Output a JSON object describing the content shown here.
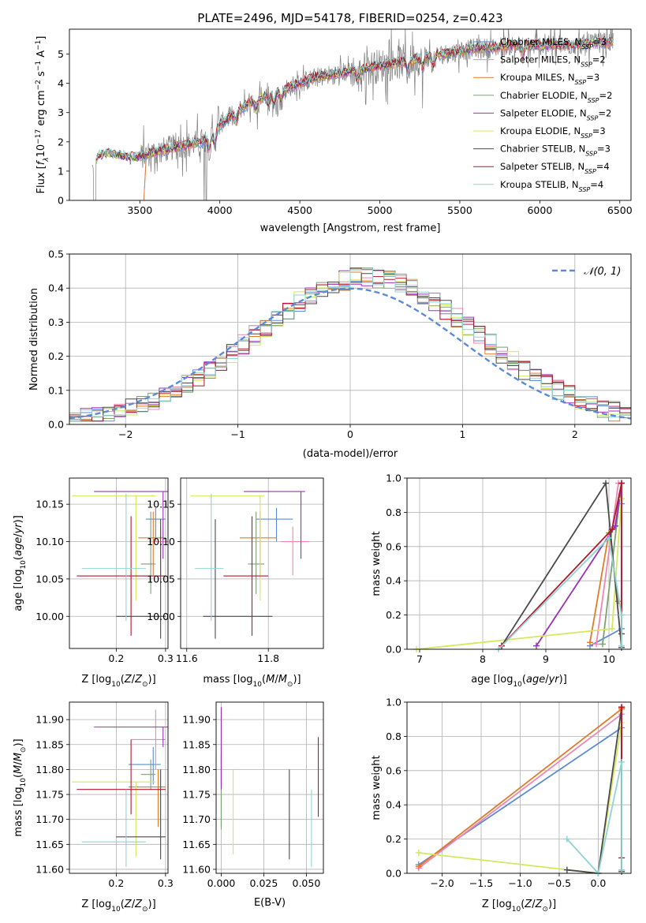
{
  "colors": {
    "chabrier_miles": "#5b8bd6",
    "salpeter_miles": "#ee87b5",
    "kroupa_miles": "#e07b27",
    "chabrier_elodie": "#7aa273",
    "salpeter_elodie": "#9b30b8",
    "kroupa_elodie": "#d3e85e",
    "chabrier_stelib": "#4a4a4a",
    "salpeter_stelib": "#b2182b",
    "kroupa_stelib": "#8fd4d2",
    "data_spectrum": "#808080",
    "normal_curve": "#5b8bd6",
    "grid": "#b0b0b0"
  },
  "chart_data": [
    {
      "id": "spectrum",
      "type": "line",
      "title": "PLATE=2496, MJD=54178, FIBERID=0254, z=0.423",
      "xlabel": "wavelength [Angstrom, rest frame]",
      "ylabel_parts": [
        "Flux [",
        "f",
        "λ",
        "10",
        "−17",
        " erg cm",
        "−2",
        " s",
        "−1",
        " A",
        "−1",
        "]"
      ],
      "xlim": [
        3060,
        6570
      ],
      "ylim": [
        0,
        5.85
      ],
      "xticks": [
        3500,
        4000,
        4500,
        5000,
        5500,
        6000,
        6500
      ],
      "yticks": [
        0,
        1,
        2,
        3,
        4,
        5
      ],
      "grid": false,
      "legend_position": "top-right",
      "legend": [
        {
          "label": "Chabrier MILES, N",
          "sub": "SSP",
          "tail": "=3",
          "color": "#5b8bd6"
        },
        {
          "label": "Salpeter MILES, N",
          "sub": "SSP",
          "tail": "=2",
          "color": "#ee87b5"
        },
        {
          "label": "Kroupa MILES, N",
          "sub": "SSP",
          "tail": "=3",
          "color": "#e07b27"
        },
        {
          "label": "Chabrier ELODIE, N",
          "sub": "SSP",
          "tail": "=2",
          "color": "#7aa273"
        },
        {
          "label": "Salpeter ELODIE, N",
          "sub": "SSP",
          "tail": "=2",
          "color": "#9b30b8"
        },
        {
          "label": "Kroupa ELODIE, N",
          "sub": "SSP",
          "tail": "=3",
          "color": "#d3e85e"
        },
        {
          "label": "Chabrier STELIB, N",
          "sub": "SSP",
          "tail": "=3",
          "color": "#4a4a4a"
        },
        {
          "label": "Salpeter STELIB, N",
          "sub": "SSP",
          "tail": "=4",
          "color": "#b2182b"
        },
        {
          "label": "Kroupa STELIB, N",
          "sub": "SSP",
          "tail": "=4",
          "color": "#8fd4d2"
        }
      ],
      "continuum_wavelength": [
        3210,
        3240,
        3300,
        3400,
        3480,
        3560,
        3700,
        3800,
        3880,
        3950,
        4000,
        4100,
        4200,
        4300,
        4400,
        4500,
        4600,
        4700,
        4800,
        4900,
        5000,
        5100,
        5200,
        5300,
        5400,
        5500,
        5600,
        5700,
        5800,
        5900,
        6000,
        6100,
        6200,
        6300,
        6400,
        6500
      ],
      "continuum_flux": [
        1.15,
        1.5,
        1.6,
        1.5,
        1.45,
        1.6,
        1.8,
        1.9,
        2.0,
        2.2,
        2.6,
        3.0,
        3.4,
        3.6,
        3.8,
        4.0,
        4.2,
        4.3,
        4.4,
        4.5,
        4.6,
        4.7,
        4.8,
        4.9,
        5.0,
        5.1,
        5.2,
        5.2,
        5.3,
        5.3,
        5.3,
        5.3,
        5.3,
        5.35,
        5.4,
        5.4
      ]
    },
    {
      "id": "residuals",
      "type": "histogram",
      "xlabel": "(data-model)/error",
      "ylabel": "Normed distribution",
      "xlim": [
        -2.5,
        2.5
      ],
      "ylim": [
        0,
        0.5
      ],
      "xticks": [
        -2,
        -1,
        0,
        1,
        2
      ],
      "yticks": [
        0.0,
        0.1,
        0.2,
        0.3,
        0.4,
        0.5
      ],
      "grid": true,
      "legend_position": "top-right",
      "legend": [
        {
          "label": "𝒩(0, 1)",
          "color": "#5b8bd6",
          "style": "dashed"
        }
      ],
      "bin_width": 0.1,
      "normal_curve": {
        "mean": 0,
        "sigma": 1
      }
    },
    {
      "id": "age_vs_Z",
      "type": "errorbar",
      "xlabel": "Z [log10(Z/Z⊙)]",
      "ylabel": "age  [log10(age/yr)]",
      "xlim": [
        0.105,
        0.305
      ],
      "ylim": [
        9.957,
        10.185
      ],
      "xticks": [
        0.2,
        0.3
      ],
      "yticks": [
        10.0,
        10.05,
        10.1,
        10.15
      ],
      "grid": true,
      "points": [
        {
          "model": "chabrier_miles",
          "x": 0.28,
          "xerr": [
            0.02,
            0.02
          ],
          "y": 10.13,
          "yerr": [
            0.03,
            0.015
          ]
        },
        {
          "model": "salpeter_miles",
          "x": 0.29,
          "xerr": [
            0.015,
            0.015
          ],
          "y": 10.1,
          "yerr": [
            0.045,
            0.02
          ]
        },
        {
          "model": "kroupa_miles",
          "x": 0.275,
          "xerr": [
            0.03,
            0.025
          ],
          "y": 10.105,
          "yerr": [
            0.05,
            0.035
          ]
        },
        {
          "model": "chabrier_elodie",
          "x": 0.27,
          "xerr": [
            0.02,
            0.01
          ],
          "y": 10.07,
          "yerr": [
            0.04,
            0.07
          ]
        },
        {
          "model": "salpeter_elodie",
          "x": 0.295,
          "xerr": [
            0.14,
            0.01
          ],
          "y": 10.167,
          "yerr": [
            0.09,
            0.0
          ]
        },
        {
          "model": "kroupa_elodie",
          "x": 0.24,
          "xerr": [
            0.13,
            0.04
          ],
          "y": 10.161,
          "yerr": [
            0.14,
            0.0
          ]
        },
        {
          "model": "chabrier_stelib",
          "x": 0.29,
          "xerr": [
            0.09,
            0.01
          ],
          "y": 10.0,
          "yerr": [
            0.03,
            0.13
          ]
        },
        {
          "model": "salpeter_stelib",
          "x": 0.23,
          "xerr": [
            0.11,
            0.07
          ],
          "y": 10.054,
          "yerr": [
            0.08,
            0.08
          ]
        },
        {
          "model": "kroupa_stelib",
          "x": 0.22,
          "xerr": [
            0.09,
            0.04
          ],
          "y": 10.064,
          "yerr": [
            0.07,
            0.1
          ]
        }
      ]
    },
    {
      "id": "age_vs_mass",
      "type": "errorbar",
      "xlabel": "mass [log10(M/M⊙)]",
      "xlim": [
        11.585,
        11.935
      ],
      "ylim": [
        9.957,
        10.185
      ],
      "xticks": [
        11.6,
        11.8
      ],
      "yticks": [
        10.0,
        10.05,
        10.1,
        10.15
      ],
      "grid": true,
      "points": [
        {
          "model": "chabrier_miles",
          "x": 11.82,
          "xerr": [
            0.05,
            0.04
          ],
          "y": 10.13,
          "yerr": [
            0.03,
            0.015
          ]
        },
        {
          "model": "salpeter_miles",
          "x": 11.86,
          "xerr": [
            0.03,
            0.04
          ],
          "y": 10.1,
          "yerr": [
            0.045,
            0.02
          ]
        },
        {
          "model": "kroupa_miles",
          "x": 11.78,
          "xerr": [
            0.05,
            0.04
          ],
          "y": 10.105,
          "yerr": [
            0.05,
            0.035
          ]
        },
        {
          "model": "chabrier_elodie",
          "x": 11.77,
          "xerr": [
            0.02,
            0.02
          ],
          "y": 10.07,
          "yerr": [
            0.04,
            0.07
          ]
        },
        {
          "model": "salpeter_elodie",
          "x": 11.88,
          "xerr": [
            0.14,
            0.01
          ],
          "y": 10.167,
          "yerr": [
            0.09,
            0.0
          ]
        },
        {
          "model": "kroupa_elodie",
          "x": 11.78,
          "xerr": [
            0.17,
            0.01
          ],
          "y": 10.161,
          "yerr": [
            0.14,
            0.0
          ]
        },
        {
          "model": "chabrier_stelib",
          "x": 11.67,
          "xerr": [
            0.03,
            0.14
          ],
          "y": 10.0,
          "yerr": [
            0.03,
            0.13
          ]
        },
        {
          "model": "salpeter_stelib",
          "x": 11.76,
          "xerr": [
            0.07,
            0.04
          ],
          "y": 10.054,
          "yerr": [
            0.08,
            0.08
          ]
        },
        {
          "model": "kroupa_stelib",
          "x": 11.66,
          "xerr": [
            0.04,
            0.03
          ],
          "y": 10.064,
          "yerr": [
            0.07,
            0.1
          ]
        }
      ]
    },
    {
      "id": "mass_weight_vs_age",
      "type": "line",
      "xlabel": "age  [log10(age/yr)]",
      "ylabel": "mass weight",
      "xlim": [
        6.8,
        10.35
      ],
      "ylim": [
        0,
        1
      ],
      "xticks": [
        7,
        8,
        9,
        10
      ],
      "yticks": [
        0.0,
        0.2,
        0.4,
        0.6,
        0.8,
        1.0
      ],
      "grid": true,
      "series": [
        {
          "model": "chabrier_miles",
          "x": [
            9.7,
            10.2,
            10.2
          ],
          "y": [
            0.02,
            0.12,
            0.85
          ]
        },
        {
          "model": "salpeter_miles",
          "x": [
            9.8,
            10.15
          ],
          "y": [
            0.03,
            0.97
          ]
        },
        {
          "model": "kroupa_miles",
          "x": [
            9.7,
            10.0,
            10.15
          ],
          "y": [
            0.04,
            0.68,
            0.28
          ]
        },
        {
          "model": "chabrier_elodie",
          "x": [
            9.9,
            10.2
          ],
          "y": [
            0.03,
            0.97
          ]
        },
        {
          "model": "salpeter_elodie",
          "x": [
            8.85,
            10.1,
            10.2
          ],
          "y": [
            0.02,
            0.72,
            0.97
          ]
        },
        {
          "model": "kroupa_elodie",
          "x": [
            6.95,
            10.05,
            10.2
          ],
          "y": [
            0.0,
            0.12,
            0.88
          ]
        },
        {
          "model": "chabrier_stelib",
          "x": [
            8.3,
            9.95,
            10.2
          ],
          "y": [
            0.02,
            0.97,
            0.01
          ]
        },
        {
          "model": "salpeter_stelib",
          "x": [
            8.3,
            10.05,
            10.2,
            10.2
          ],
          "y": [
            0.02,
            0.7,
            0.97,
            0.09
          ]
        },
        {
          "model": "kroupa_stelib",
          "x": [
            8.25,
            10.0,
            10.2,
            10.2
          ],
          "y": [
            0.0,
            0.65,
            0.2,
            0.02
          ]
        }
      ]
    },
    {
      "id": "mass_vs_Z",
      "type": "errorbar",
      "xlabel": "Z [log10(Z/Z⊙)]",
      "ylabel": "mass [log10(M/M⊙)]",
      "xlim": [
        0.105,
        0.305
      ],
      "ylim": [
        11.592,
        11.935
      ],
      "xticks": [
        0.2,
        0.3
      ],
      "yticks": [
        11.6,
        11.65,
        11.7,
        11.75,
        11.8,
        11.85,
        11.9
      ],
      "grid": true,
      "points": [
        {
          "model": "chabrier_miles",
          "x": 0.275,
          "xerr": [
            0.05,
            0.015
          ],
          "y": 11.81,
          "yerr": [
            0.04,
            0.035
          ]
        },
        {
          "model": "salpeter_miles",
          "x": 0.28,
          "xerr": [
            0.05,
            0.02
          ],
          "y": 11.86,
          "yerr": [
            0.06,
            0.06
          ]
        },
        {
          "model": "kroupa_miles",
          "x": 0.285,
          "xerr": [
            0.06,
            0.015
          ],
          "y": 11.765,
          "yerr": [
            0.08,
            0.035
          ]
        },
        {
          "model": "chabrier_elodie",
          "x": 0.27,
          "xerr": [
            0.02,
            0.01
          ],
          "y": 11.79,
          "yerr": [
            0.03,
            0.03
          ]
        },
        {
          "model": "salpeter_elodie",
          "x": 0.295,
          "xerr": [
            0.14,
            0.01
          ],
          "y": 11.885,
          "yerr": [
            0.04,
            0.0
          ]
        },
        {
          "model": "kroupa_elodie",
          "x": 0.24,
          "xerr": [
            0.13,
            0.04
          ],
          "y": 11.775,
          "yerr": [
            0.15,
            0.0
          ]
        },
        {
          "model": "chabrier_stelib",
          "x": 0.29,
          "xerr": [
            0.09,
            0.01
          ],
          "y": 11.665,
          "yerr": [
            0.045,
            0.135
          ]
        },
        {
          "model": "salpeter_stelib",
          "x": 0.23,
          "xerr": [
            0.11,
            0.07
          ],
          "y": 11.76,
          "yerr": [
            0.05,
            0.1
          ]
        },
        {
          "model": "kroupa_stelib",
          "x": 0.22,
          "xerr": [
            0.09,
            0.04
          ],
          "y": 11.655,
          "yerr": [
            0.05,
            0.105
          ]
        }
      ]
    },
    {
      "id": "mass_vs_ebv",
      "type": "errorbar",
      "xlabel": "E(B-V)",
      "xlim": [
        -0.003,
        0.06
      ],
      "ylim": [
        11.592,
        11.935
      ],
      "xticks": [
        0.0,
        0.025,
        0.05
      ],
      "yticks": [
        11.6,
        11.65,
        11.7,
        11.75,
        11.8,
        11.85,
        11.9
      ],
      "grid": true,
      "points": [
        {
          "model": "chabrier_miles",
          "x": 0.0,
          "y": 11.81,
          "yerr": [
            0.04,
            0.035
          ]
        },
        {
          "model": "salpeter_miles",
          "x": 0.0,
          "y": 11.86,
          "yerr": [
            0.06,
            0.06
          ]
        },
        {
          "model": "kroupa_miles",
          "x": 0.0,
          "y": 11.765,
          "yerr": [
            0.08,
            0.035
          ]
        },
        {
          "model": "chabrier_elodie",
          "x": 0.0,
          "y": 11.75,
          "yerr": [
            0.07,
            0.08
          ]
        },
        {
          "model": "salpeter_elodie",
          "x": 0.0,
          "y": 11.84,
          "yerr": [
            0.08,
            0.085
          ]
        },
        {
          "model": "kroupa_elodie",
          "x": 0.007,
          "y": 11.715,
          "yerr": [
            0.085,
            0.085
          ]
        },
        {
          "model": "chabrier_stelib",
          "x": 0.04,
          "y": 11.71,
          "yerr": [
            0.09,
            0.09
          ]
        },
        {
          "model": "salpeter_stelib",
          "x": 0.057,
          "y": 11.785,
          "yerr": [
            0.08,
            0.08
          ]
        },
        {
          "model": "kroupa_stelib",
          "x": 0.053,
          "y": 11.68,
          "yerr": [
            0.075,
            0.08
          ]
        }
      ]
    },
    {
      "id": "mass_weight_vs_Z",
      "type": "line",
      "xlabel": "Z [log10(Z/Z⊙)]",
      "ylabel": "mass weight",
      "xlim": [
        -2.45,
        0.42
      ],
      "ylim": [
        0,
        1
      ],
      "xticks": [
        -2.0,
        -1.5,
        -1.0,
        -0.5,
        0.0
      ],
      "yticks": [
        0.0,
        0.2,
        0.4,
        0.6,
        0.8,
        1.0
      ],
      "grid": true,
      "series": [
        {
          "model": "chabrier_miles",
          "x": [
            -2.3,
            0.3
          ],
          "y": [
            0.05,
            0.85
          ]
        },
        {
          "model": "salpeter_miles",
          "x": [
            -2.3,
            0.3
          ],
          "y": [
            0.03,
            0.93
          ]
        },
        {
          "model": "kroupa_miles",
          "x": [
            -2.3,
            0.3
          ],
          "y": [
            0.04,
            0.96
          ]
        },
        {
          "model": "chabrier_elodie",
          "x": [
            0.3,
            0.3
          ],
          "y": [
            0.02,
            0.97
          ]
        },
        {
          "model": "salpeter_elodie",
          "x": [
            0.3,
            0.3
          ],
          "y": [
            0.02,
            0.97
          ]
        },
        {
          "model": "kroupa_elodie",
          "x": [
            -2.3,
            0.0,
            0.3
          ],
          "y": [
            0.12,
            0.0,
            0.88
          ]
        },
        {
          "model": "chabrier_stelib",
          "x": [
            -0.4,
            0.0,
            0.3,
            0.3
          ],
          "y": [
            0.02,
            0.0,
            0.97,
            0.01
          ]
        },
        {
          "model": "salpeter_stelib",
          "x": [
            0.3,
            0.3
          ],
          "y": [
            0.09,
            0.97
          ]
        },
        {
          "model": "kroupa_stelib",
          "x": [
            -0.4,
            0.0,
            0.3,
            0.3
          ],
          "y": [
            0.2,
            0.0,
            0.65,
            0.02
          ]
        }
      ]
    }
  ]
}
